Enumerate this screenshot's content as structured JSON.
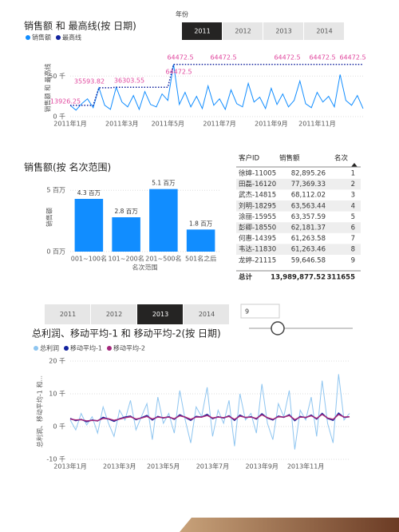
{
  "chart_data": [
    {
      "type": "line",
      "title": "销售额 和 最高线(按 日期)",
      "y_label": "销售额 和 最高线",
      "categories": [
        "2011年1月",
        null,
        null,
        null,
        null,
        null,
        null,
        null,
        null,
        "2011年3月",
        null,
        null,
        null,
        null,
        null,
        null,
        null,
        "2011年5月",
        null,
        null,
        null,
        null,
        null,
        null,
        null,
        null,
        "2011年7月",
        null,
        null,
        null,
        null,
        null,
        null,
        null,
        null,
        "2011年9月",
        null,
        null,
        null,
        null,
        null,
        null,
        null,
        "2011年11月",
        null,
        null,
        null,
        null,
        null,
        null,
        null,
        null
      ],
      "series": [
        {
          "name": "销售额",
          "color": "#118dff",
          "values": [
            13926.25,
            8000,
            16000,
            22000,
            11000,
            35593.82,
            14000,
            9000,
            36303.55,
            18000,
            12000,
            26000,
            9000,
            31000,
            15000,
            12000,
            28000,
            20000,
            64472.5,
            15000,
            30000,
            12000,
            25000,
            10000,
            38000,
            14000,
            22000,
            9000,
            33000,
            16000,
            12000,
            41000,
            18000,
            24000,
            10000,
            35000,
            15000,
            28000,
            12000,
            20000,
            44000,
            16000,
            11000,
            30000,
            18000,
            25000,
            12000,
            52000,
            20000,
            14000,
            26000,
            10000
          ]
        },
        {
          "name": "最高线",
          "color": "#12239e",
          "dashed": true,
          "values": [
            13926.25,
            13926.25,
            13926.25,
            13926.25,
            13926.25,
            35593.82,
            35593.82,
            35593.82,
            36303.55,
            36303.55,
            36303.55,
            36303.55,
            36303.55,
            36303.55,
            36303.55,
            36303.55,
            36303.55,
            36303.55,
            64472.5,
            64472.5,
            64472.5,
            64472.5,
            64472.5,
            64472.5,
            64472.5,
            64472.5,
            64472.5,
            64472.5,
            64472.5,
            64472.5,
            64472.5,
            64472.5,
            64472.5,
            64472.5,
            64472.5,
            64472.5,
            64472.5,
            64472.5,
            64472.5,
            64472.5,
            64472.5,
            64472.5,
            64472.5,
            64472.5,
            64472.5,
            64472.5,
            64472.5,
            64472.5,
            64472.5,
            64472.5,
            64472.5,
            64472.5
          ]
        }
      ],
      "annotations": [
        "13926.25",
        "35593.82",
        "36303.55",
        "64472.5",
        "64472.5",
        "64472.5",
        "64472.5",
        "64472.5",
        "64472.5"
      ],
      "ylim": [
        0,
        70000
      ],
      "yticks": [
        {
          "value": 0,
          "label": "0 千"
        },
        {
          "value": 50000,
          "label": "50 千"
        }
      ],
      "grid": true
    },
    {
      "type": "bar",
      "title": "销售额(按 名次范围)",
      "y_label": "销售额",
      "x_label": "名次范围",
      "categories": [
        "001~100名",
        "101~200名",
        "201~500名",
        "501名之后"
      ],
      "values": [
        4300000,
        2800000,
        5100000,
        1800000
      ],
      "value_labels": [
        "4.3 百万",
        "2.8 百万",
        "5.1 百万",
        "1.8 百万"
      ],
      "color": "#118dff",
      "ylim": [
        0,
        5600000
      ],
      "yticks": [
        {
          "value": 0,
          "label": "0 百万"
        },
        {
          "value": 5000000,
          "label": "5 百万"
        }
      ],
      "grid": true
    },
    {
      "type": "line",
      "title": "总利润、移动平均-1 和 移动平均-2(按 日期)",
      "y_label": "总利润、移动平均-1 和...",
      "categories": [
        "2013年1月",
        null,
        null,
        null,
        null,
        null,
        null,
        null,
        null,
        "2013年3月",
        null,
        null,
        null,
        null,
        null,
        null,
        null,
        "2013年5月",
        null,
        null,
        null,
        null,
        null,
        null,
        null,
        null,
        "2013年7月",
        null,
        null,
        null,
        null,
        null,
        null,
        null,
        null,
        "2013年9月",
        null,
        null,
        null,
        null,
        null,
        null,
        null,
        "2013年11月",
        null,
        null,
        null,
        null,
        null,
        null,
        null,
        null
      ],
      "series": [
        {
          "name": "总利润",
          "color": "#8ec5f0",
          "values": [
            2000,
            -1000,
            4000,
            500,
            3000,
            -2000,
            6000,
            1000,
            -3000,
            5000,
            2000,
            8000,
            -1000,
            3000,
            7000,
            -4000,
            9000,
            1000,
            4000,
            -2000,
            11000,
            2000,
            -5000,
            6000,
            3000,
            12000,
            -3000,
            5000,
            1000,
            8000,
            -6000,
            10000,
            2000,
            4000,
            -2000,
            13000,
            1000,
            -4000,
            7000,
            3000,
            11000,
            -7000,
            5000,
            2000,
            9000,
            -3000,
            14000,
            1000,
            -5000,
            16000,
            2000,
            4000
          ]
        },
        {
          "name": "移动平均-1",
          "color": "#12239e",
          "values": [
            2500,
            1800,
            2200,
            1500,
            2000,
            1700,
            2800,
            2300,
            1600,
            2400,
            2900,
            3200,
            2100,
            2700,
            3400,
            2000,
            3100,
            2600,
            3000,
            2200,
            3600,
            2800,
            1900,
            3100,
            2900,
            3700,
            2400,
            3000,
            2600,
            3300,
            1900,
            3500,
            2700,
            3000,
            2300,
            3900,
            2600,
            2000,
            3200,
            2800,
            3600,
            1800,
            3100,
            2700,
            3500,
            2300,
            4000,
            2500,
            1900,
            4100,
            2800,
            3000
          ]
        },
        {
          "name": "移动平均-2",
          "color": "#a3267a",
          "values": [
            2300,
            2000,
            2100,
            1700,
            1900,
            1800,
            2500,
            2400,
            1900,
            2300,
            2700,
            3000,
            2300,
            2600,
            3100,
            2300,
            2900,
            2700,
            2900,
            2400,
            3300,
            2900,
            2200,
            2900,
            2900,
            3400,
            2600,
            2900,
            2700,
            3100,
            2200,
            3200,
            2800,
            2900,
            2500,
            3600,
            2700,
            2200,
            3000,
            2900,
            3400,
            2100,
            2900,
            2800,
            3300,
            2500,
            3700,
            2600,
            2200,
            3700,
            2900,
            3000
          ]
        }
      ],
      "ylim": [
        -10000,
        20000
      ],
      "yticks": [
        {
          "value": -10000,
          "label": "-10 千"
        },
        {
          "value": 0,
          "label": "0 千"
        },
        {
          "value": 10000,
          "label": "10 千"
        },
        {
          "value": 20000,
          "label": "20 千"
        }
      ],
      "grid": true
    }
  ],
  "slicer_top": {
    "label": "年份",
    "options": [
      "2011",
      "2012",
      "2013",
      "2014"
    ],
    "selected": 0
  },
  "slicer_bottom": {
    "options": [
      "2011",
      "2012",
      "2013",
      "2014"
    ],
    "selected": 2
  },
  "input_value": "9",
  "table": {
    "columns": [
      "客户ID",
      "销售额",
      "名次"
    ],
    "rows": [
      [
        "徐嫜-11005",
        "82,895.26",
        "1"
      ],
      [
        "田磊-16120",
        "77,369.33",
        "2"
      ],
      [
        "武杰-14815",
        "68,112.02",
        "3"
      ],
      [
        "刘明-18295",
        "63,563.44",
        "4"
      ],
      [
        "涂丽-15955",
        "63,357.59",
        "5"
      ],
      [
        "彭卿-18550",
        "62,181.37",
        "6"
      ],
      [
        "何惠-14395",
        "61,263.58",
        "7"
      ],
      [
        "韦达-11830",
        "61,263.46",
        "8"
      ],
      [
        "龙婷-21115",
        "59,646.58",
        "9"
      ]
    ],
    "total": [
      "总计",
      "13,989,877.52",
      "311655"
    ]
  }
}
